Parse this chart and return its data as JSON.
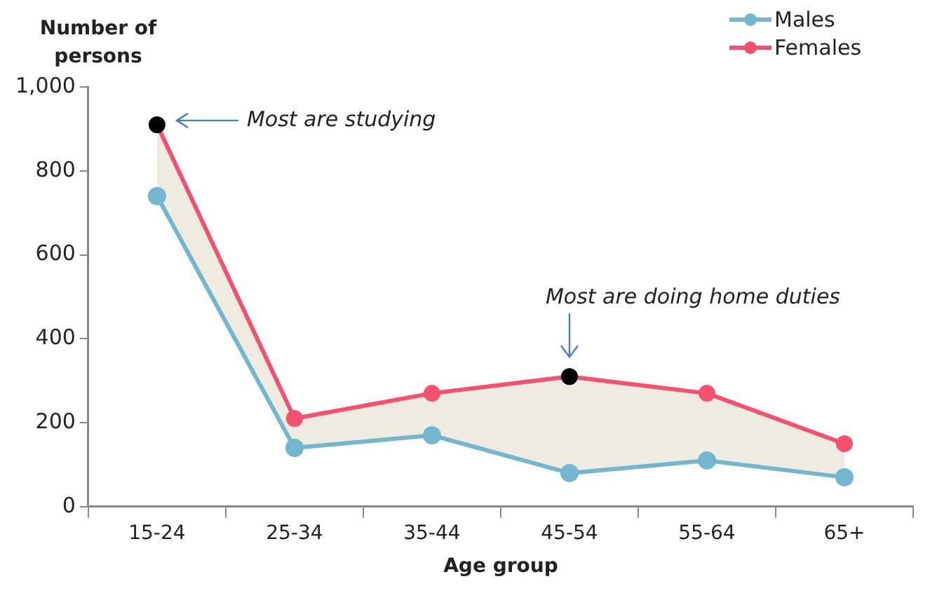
{
  "chart_data": {
    "type": "line",
    "ylabel": "Number of persons",
    "xlabel": "Age group",
    "categories": [
      "15-24",
      "25-34",
      "35-44",
      "45-54",
      "55-64",
      "65+"
    ],
    "series": [
      {
        "name": "Males",
        "color": "#72b6cf",
        "values": [
          740,
          140,
          170,
          80,
          110,
          70
        ]
      },
      {
        "name": "Females",
        "color": "#f5506e",
        "colors": [
          "#000000",
          "#f5506e",
          "#f5506e",
          "#000000",
          "#f5506e",
          "#f5506e"
        ],
        "values": [
          910,
          210,
          270,
          310,
          270,
          150
        ],
        "lower": [
          740,
          140,
          170,
          80,
          110,
          70
        ],
        "upper": [
          910,
          210,
          270,
          310,
          270,
          150
        ]
      }
    ],
    "ylim": [
      0,
      1000
    ],
    "yticks": [
      0,
      200,
      400,
      600,
      800,
      {
        "value": 1000,
        "label": "1,000"
      }
    ],
    "annotations": [
      "Most are studying",
      "Most are doing home duties"
    ],
    "grid": false,
    "legend": "top right",
    "marker": "circle",
    "line_style": "solid"
  }
}
